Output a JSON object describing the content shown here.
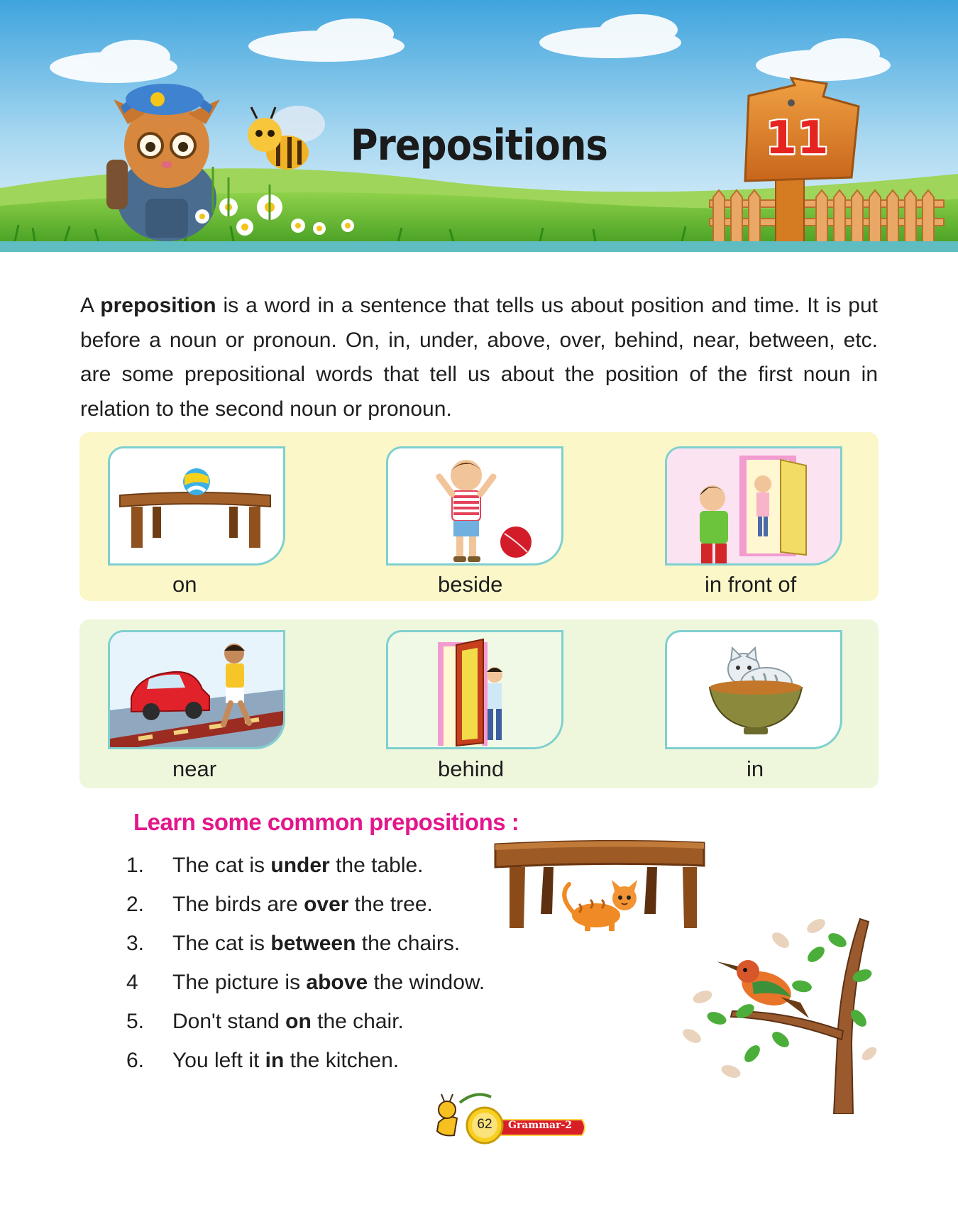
{
  "chapter": {
    "title": "Prepositions",
    "number": "11"
  },
  "intro": {
    "lead": "A ",
    "term": "preposition",
    "rest": " is a word in a sentence that tells us about position and time. It is put before a noun or pronoun. On, in, under, above, over, behind, near, between, etc. are some prepositional words that tell us about the position of the first noun in relation to the second noun or pronoun."
  },
  "pictures": {
    "row1": [
      "on",
      "beside",
      "in front of"
    ],
    "row2": [
      "near",
      "behind",
      "in"
    ]
  },
  "learn": {
    "heading": "Learn some common prepositions :",
    "examples": [
      {
        "num": "1.",
        "before": "The cat is ",
        "word": "under",
        "after": " the table."
      },
      {
        "num": "2.",
        "before": "The birds are ",
        "word": "over",
        "after": " the tree."
      },
      {
        "num": "3.",
        "before": "The cat is ",
        "word": "between",
        "after": " the chairs."
      },
      {
        "num": "4",
        "before": "The picture is ",
        "word": "above",
        "after": " the window."
      },
      {
        "num": "5.",
        "before": "Don't stand ",
        "word": "on",
        "after": " the chair."
      },
      {
        "num": "6.",
        "before": "You left it ",
        "word": "in",
        "after": " the kitchen."
      }
    ]
  },
  "footer": {
    "page_number": "62",
    "book": "Grammar-2"
  },
  "colors": {
    "heading_pink": "#e3178b",
    "number_red": "#e52420",
    "panel_yellow": "#fbf7c9",
    "panel_green": "#eef6dc",
    "card_border": "#7fd0cf"
  }
}
